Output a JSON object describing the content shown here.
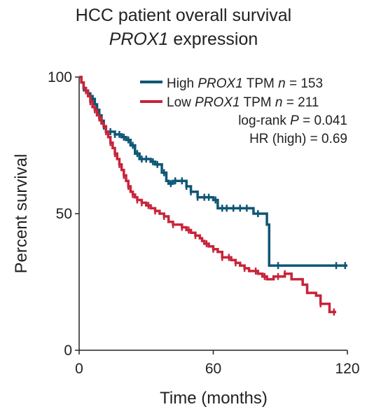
{
  "chart_data": {
    "type": "line",
    "subtype": "kaplan-meier",
    "title_line1": "HCC patient overall survival",
    "title_line2_italic": "PROX1",
    "title_line2_rest": " expression",
    "xlabel": "Time (months)",
    "ylabel": "Percent survival",
    "xlim": [
      0,
      120
    ],
    "ylim": [
      0,
      100
    ],
    "xticks": [
      0,
      60,
      120
    ],
    "yticks": [
      0,
      50,
      100
    ],
    "legend_position": "top-right",
    "grid": false,
    "series": [
      {
        "name": "High PROX1 TPM n = 153",
        "label_pre": "High ",
        "label_italic1": "PROX1",
        "label_mid": " TPM ",
        "label_italic2": "n",
        "label_post": " = 153",
        "color": "#0f5675",
        "steps": [
          [
            0,
            100
          ],
          [
            1,
            98
          ],
          [
            2,
            96
          ],
          [
            3,
            95
          ],
          [
            4,
            94
          ],
          [
            5,
            93
          ],
          [
            6,
            92
          ],
          [
            7,
            90
          ],
          [
            8,
            88
          ],
          [
            9,
            86
          ],
          [
            10,
            84
          ],
          [
            11,
            82
          ],
          [
            12,
            80
          ],
          [
            16,
            79
          ],
          [
            19,
            78
          ],
          [
            21,
            77
          ],
          [
            23,
            75
          ],
          [
            25,
            72
          ],
          [
            27,
            70
          ],
          [
            32,
            69
          ],
          [
            34,
            68
          ],
          [
            37,
            65
          ],
          [
            39,
            62
          ],
          [
            40,
            61
          ],
          [
            42,
            62
          ],
          [
            45,
            62
          ],
          [
            48,
            60
          ],
          [
            50,
            58
          ],
          [
            53,
            56
          ],
          [
            57,
            56
          ],
          [
            60,
            55
          ],
          [
            62,
            52
          ],
          [
            65,
            52
          ],
          [
            70,
            52
          ],
          [
            73,
            52
          ],
          [
            75,
            52
          ],
          [
            78,
            50
          ],
          [
            82,
            50
          ],
          [
            84,
            46
          ],
          [
            85,
            31
          ],
          [
            120,
            31
          ]
        ],
        "censor": [
          2,
          4,
          6,
          9,
          11,
          14,
          16,
          18,
          20,
          22,
          24,
          26,
          28,
          30,
          33,
          35,
          38,
          41,
          43,
          46,
          48,
          50,
          53,
          56,
          58,
          61,
          64,
          66,
          69,
          72,
          75,
          80,
          89,
          115,
          119
        ]
      },
      {
        "name": "Low PROX1 TPM n = 211",
        "label_pre": "Low ",
        "label_italic1": "PROX1",
        "label_mid": " TPM ",
        "label_italic2": "n",
        "label_post": " = 211",
        "color": "#c8243a",
        "steps": [
          [
            0,
            100
          ],
          [
            1,
            98
          ],
          [
            2,
            96
          ],
          [
            3,
            95
          ],
          [
            4,
            93
          ],
          [
            5,
            91
          ],
          [
            6,
            89
          ],
          [
            7,
            88
          ],
          [
            8,
            86
          ],
          [
            9,
            85
          ],
          [
            10,
            83
          ],
          [
            11,
            82
          ],
          [
            12,
            80
          ],
          [
            13,
            78
          ],
          [
            14,
            76
          ],
          [
            15,
            74
          ],
          [
            16,
            72
          ],
          [
            17,
            70
          ],
          [
            18,
            68
          ],
          [
            19,
            66
          ],
          [
            20,
            64
          ],
          [
            21,
            62
          ],
          [
            22,
            60
          ],
          [
            23,
            58
          ],
          [
            24,
            57
          ],
          [
            25,
            56
          ],
          [
            26,
            55
          ],
          [
            28,
            54
          ],
          [
            30,
            53
          ],
          [
            32,
            52
          ],
          [
            34,
            51
          ],
          [
            36,
            50
          ],
          [
            38,
            49
          ],
          [
            40,
            47
          ],
          [
            42,
            46
          ],
          [
            44,
            46
          ],
          [
            46,
            45
          ],
          [
            48,
            44
          ],
          [
            50,
            43
          ],
          [
            52,
            42
          ],
          [
            54,
            41
          ],
          [
            55,
            40
          ],
          [
            56,
            39
          ],
          [
            58,
            38
          ],
          [
            60,
            37
          ],
          [
            62,
            36
          ],
          [
            64,
            34
          ],
          [
            68,
            33
          ],
          [
            70,
            32
          ],
          [
            72,
            31
          ],
          [
            74,
            30
          ],
          [
            76,
            29
          ],
          [
            78,
            29
          ],
          [
            80,
            28
          ],
          [
            82,
            27
          ],
          [
            84,
            26
          ],
          [
            87,
            27
          ],
          [
            92,
            28
          ],
          [
            95,
            26
          ],
          [
            100,
            24
          ],
          [
            102,
            21
          ],
          [
            106,
            20
          ],
          [
            108,
            17
          ],
          [
            112,
            14
          ],
          [
            115,
            14
          ]
        ],
        "censor": [
          3,
          5,
          7,
          9,
          12,
          14,
          16,
          18,
          20,
          22,
          24,
          26,
          28,
          31,
          34,
          38,
          42,
          46,
          49,
          52,
          57,
          60,
          64,
          67,
          70,
          74,
          79,
          83,
          89,
          92,
          108,
          114
        ]
      }
    ],
    "annotations": [
      {
        "pre": "log-rank ",
        "italic": "P",
        "post": " = 0.041"
      },
      {
        "pre": "HR (high) = 0.69",
        "italic": "",
        "post": ""
      }
    ]
  }
}
